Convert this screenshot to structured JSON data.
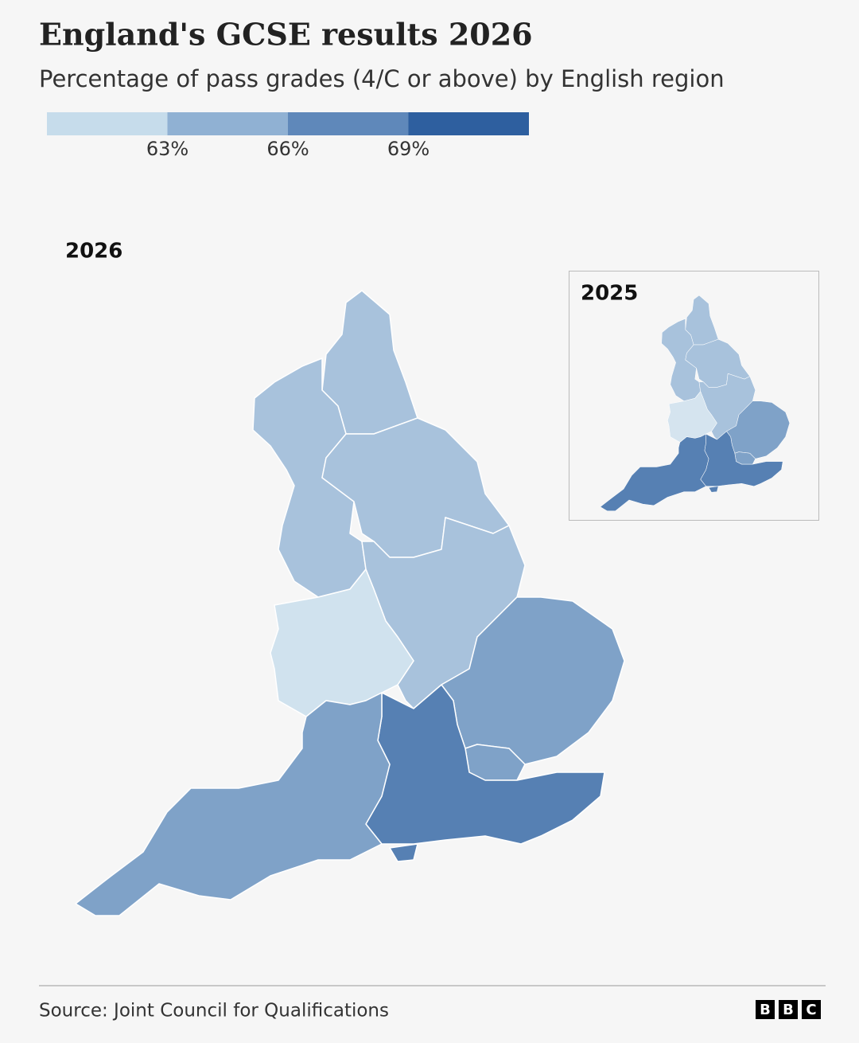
{
  "header": {
    "title": "England's GCSE results 2026",
    "subtitle": "Percentage of pass grades (4/C or above) by English region"
  },
  "legend": {
    "colors": [
      "#c6dceb",
      "#90b1d3",
      "#5f88ba",
      "#2e5f9f"
    ],
    "ticks": [
      {
        "value": 63,
        "label": "63%"
      },
      {
        "value": 66,
        "label": "66%"
      },
      {
        "value": 69,
        "label": "69%"
      }
    ]
  },
  "maps": [
    {
      "label": "2026",
      "region_colors": [
        "#a8c2dc",
        "#a8c2dc",
        "#a8c2dc",
        "#a8c2dc",
        "#d0e2ee",
        "#7fa2c8",
        "#7fa2c8",
        "#5680b3",
        "#7fa2c8",
        "#5680b3"
      ]
    },
    {
      "label": "2025",
      "region_colors": [
        "#a8c2dc",
        "#a8c2dc",
        "#a8c2dc",
        "#a8c2dc",
        "#d5e4ef",
        "#7fa2c8",
        "#7fa2c8",
        "#5680b3",
        "#5680b3",
        "#5680b3"
      ]
    }
  ],
  "footer": {
    "source": "Source: Joint Council for Qualifications",
    "logo": [
      "B",
      "B",
      "C"
    ]
  }
}
